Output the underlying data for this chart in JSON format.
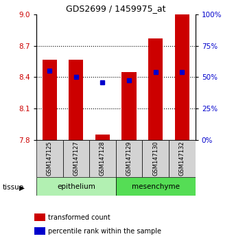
{
  "title": "GDS2699 / 1459975_at",
  "samples": [
    "GSM147125",
    "GSM147127",
    "GSM147128",
    "GSM147129",
    "GSM147130",
    "GSM147132"
  ],
  "red_values": [
    8.57,
    8.57,
    7.85,
    8.45,
    8.77,
    9.0
  ],
  "blue_values": [
    8.46,
    8.4,
    8.35,
    8.37,
    8.45,
    8.45
  ],
  "ylim_left": [
    7.8,
    9.0
  ],
  "yticks_left": [
    7.8,
    8.1,
    8.4,
    8.7,
    9
  ],
  "yticks_right": [
    0,
    25,
    50,
    75,
    100
  ],
  "bar_color": "#CC0000",
  "dot_color": "#0000CC",
  "bar_width": 0.55,
  "tissue_label": "tissue",
  "legend_items": [
    "transformed count",
    "percentile rank within the sample"
  ],
  "ylabel_left_color": "#CC0000",
  "ylabel_right_color": "#0000CC",
  "group_bg_color": "#d3d3d3",
  "epithelium_color": "#b2f0b2",
  "mesenchyme_color": "#55dd55",
  "group_info": [
    {
      "label": "epithelium",
      "start": 0,
      "end": 2
    },
    {
      "label": "mesenchyme",
      "start": 3,
      "end": 5
    }
  ]
}
